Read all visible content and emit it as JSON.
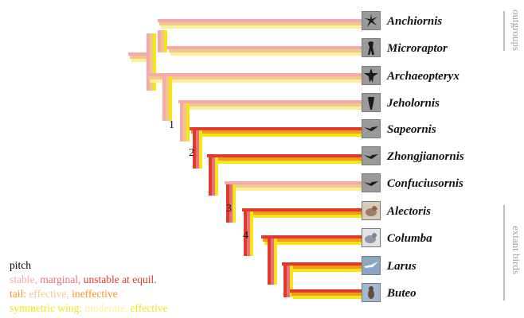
{
  "taxa": [
    {
      "name": "Anchiornis",
      "icon": "feathered-dinosaur-silhouette-icon"
    },
    {
      "name": "Microraptor",
      "icon": "four-winged-dinosaur-silhouette-icon"
    },
    {
      "name": "Archaeopteryx",
      "icon": "archaeopteryx-silhouette-icon"
    },
    {
      "name": "Jeholornis",
      "icon": "long-tailed-bird-silhouette-icon"
    },
    {
      "name": "Sapeornis",
      "icon": "bird-silhouette-icon"
    },
    {
      "name": "Zhongjianornis",
      "icon": "bird-silhouette-icon"
    },
    {
      "name": "Confuciusornis",
      "icon": "bird-silhouette-icon"
    },
    {
      "name": "Alectoris",
      "icon": "partridge-photo-icon"
    },
    {
      "name": "Columba",
      "icon": "pigeon-photo-icon"
    },
    {
      "name": "Larus",
      "icon": "gull-photo-icon"
    },
    {
      "name": "Buteo",
      "icon": "hawk-photo-icon"
    }
  ],
  "node_labels": [
    "1",
    "2",
    "3",
    "4"
  ],
  "groups": {
    "outgroups": "outgroups",
    "extant": "extant birds"
  },
  "legend": {
    "title": "pitch",
    "row1": {
      "stable": "stable,",
      "marginal": "marginal,",
      "unstable": "unstable at equil."
    },
    "row2": {
      "prefix": "tail:",
      "effective": "effective,",
      "ineffective": "ineffective"
    },
    "row3": {
      "prefix": "symmetric wing:",
      "moderate": "moderate,",
      "effective": "effective"
    }
  },
  "colors": {
    "stable": "#f4aaa8",
    "marginal": "#e8717a",
    "unstable": "#e03a2a",
    "tail_effective": "#f2c78f",
    "tail_ineffective": "#f29a1c",
    "wing_moderate": "#fbef9a",
    "wing_effective": "#f6e31a",
    "outgroup_text": "#a0a0a0"
  }
}
